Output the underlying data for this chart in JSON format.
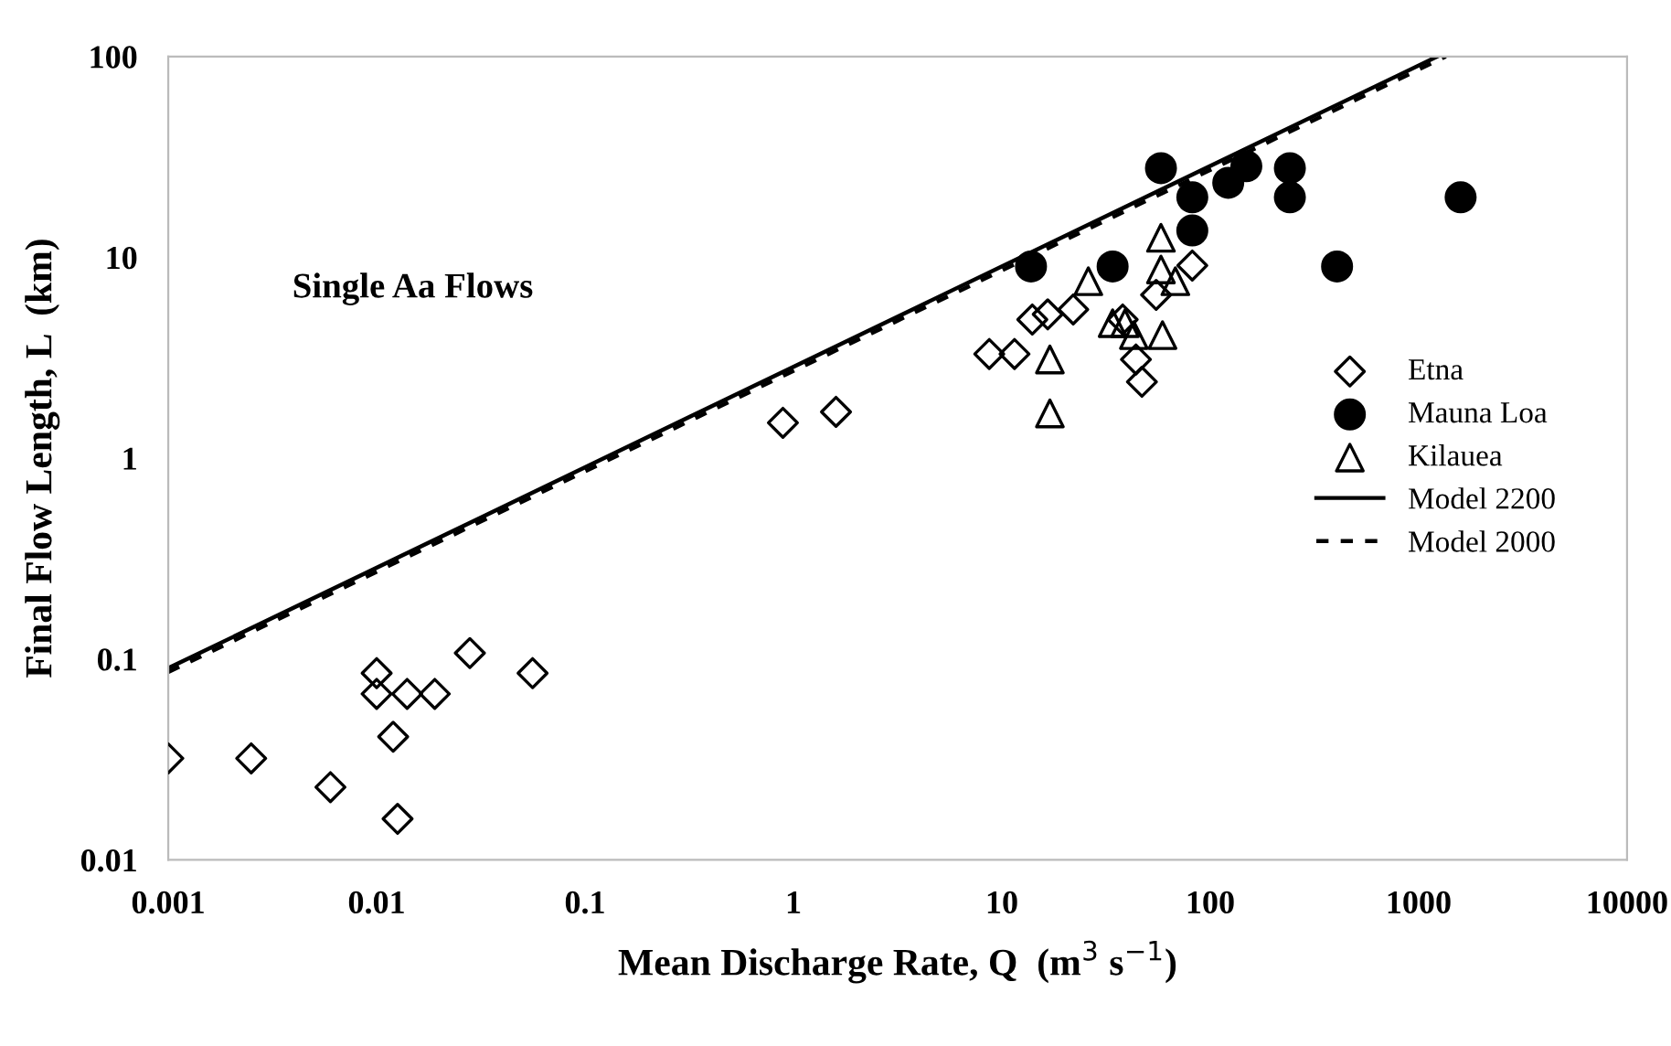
{
  "chart_data": {
    "type": "scatter",
    "xlabel": "Mean Discharge Rate, Q  (m$^{3}$ s$^{−1}$)",
    "ylabel": "Final Flow Length, L  (km)",
    "log": "xy",
    "xlim": [
      0.001,
      10000
    ],
    "ylim": [
      0.01,
      100
    ],
    "xticks": [
      0.001,
      0.01,
      0.1,
      1,
      10,
      100,
      1000,
      10000
    ],
    "yticks": [
      0.01,
      0.1,
      1,
      10,
      100
    ],
    "grid": false,
    "legend": "right",
    "annotations": [
      "Single Aa Flows"
    ],
    "series": [
      {
        "name": "Etna",
        "marker": "diamond",
        "color": "#000000",
        "x": [
          0.001,
          0.0025,
          0.006,
          0.01,
          0.01,
          0.014,
          0.019,
          0.028,
          0.056,
          0.012,
          0.0126,
          0.89,
          1.6,
          8.7,
          11.5,
          14,
          16.6,
          22,
          38,
          44,
          47,
          55,
          82
        ],
        "values": [
          0.032,
          0.032,
          0.023,
          0.085,
          0.067,
          0.067,
          0.067,
          0.107,
          0.085,
          0.041,
          0.016,
          1.5,
          1.7,
          3.3,
          3.3,
          4.9,
          5.2,
          5.5,
          4.9,
          3.1,
          2.4,
          6.5,
          9.1
        ]
      },
      {
        "name": "Mauna Loa",
        "marker": "circle",
        "color": "#000000",
        "x": [
          13.8,
          34,
          58,
          82,
          82,
          122,
          149,
          241,
          241,
          406,
          1590
        ],
        "values": [
          9,
          9,
          27.8,
          19.9,
          13.6,
          23.5,
          28.4,
          27.8,
          19.9,
          9,
          19.9
        ]
      },
      {
        "name": "Kilauea",
        "marker": "triangle",
        "color": "#000000",
        "x": [
          26,
          17,
          17,
          34,
          39,
          43,
          59,
          58,
          58,
          68
        ],
        "values": [
          7.6,
          3.1,
          1.67,
          4.7,
          4.7,
          4.1,
          4.1,
          12.5,
          8.7,
          7.6
        ]
      },
      {
        "name": "Model 2200",
        "type": "line",
        "line_style": "solid",
        "color": "#000000",
        "x": [
          0.001,
          1230
        ],
        "values": [
          0.09,
          100
        ]
      },
      {
        "name": "Model 2000",
        "type": "line",
        "line_style": "dashed",
        "color": "#000000",
        "x": [
          0.001,
          1350
        ],
        "values": [
          0.086,
          100
        ]
      }
    ]
  }
}
